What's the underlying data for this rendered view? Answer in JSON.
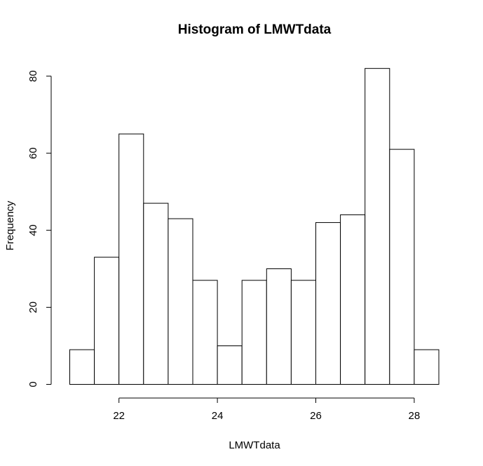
{
  "chart_data": {
    "type": "bar",
    "title": "Histogram of LMWTdata",
    "xlabel": "LMWTdata",
    "ylabel": "Frequency",
    "bin_edges": [
      21.0,
      21.5,
      22.0,
      22.5,
      23.0,
      23.5,
      24.0,
      24.5,
      25.0,
      25.5,
      26.0,
      26.5,
      27.0,
      27.5,
      28.0,
      28.5
    ],
    "values": [
      9,
      33,
      65,
      47,
      43,
      27,
      10,
      27,
      30,
      27,
      42,
      44,
      82,
      61,
      9
    ],
    "xlim": [
      21.0,
      28.5
    ],
    "ylim": [
      0,
      82
    ],
    "x_ticks": [
      22,
      24,
      26,
      28
    ],
    "y_ticks": [
      0,
      20,
      40,
      60,
      80
    ],
    "bar_fill": "#ffffff",
    "bar_stroke": "#000000",
    "grid": false,
    "legend": "none"
  }
}
